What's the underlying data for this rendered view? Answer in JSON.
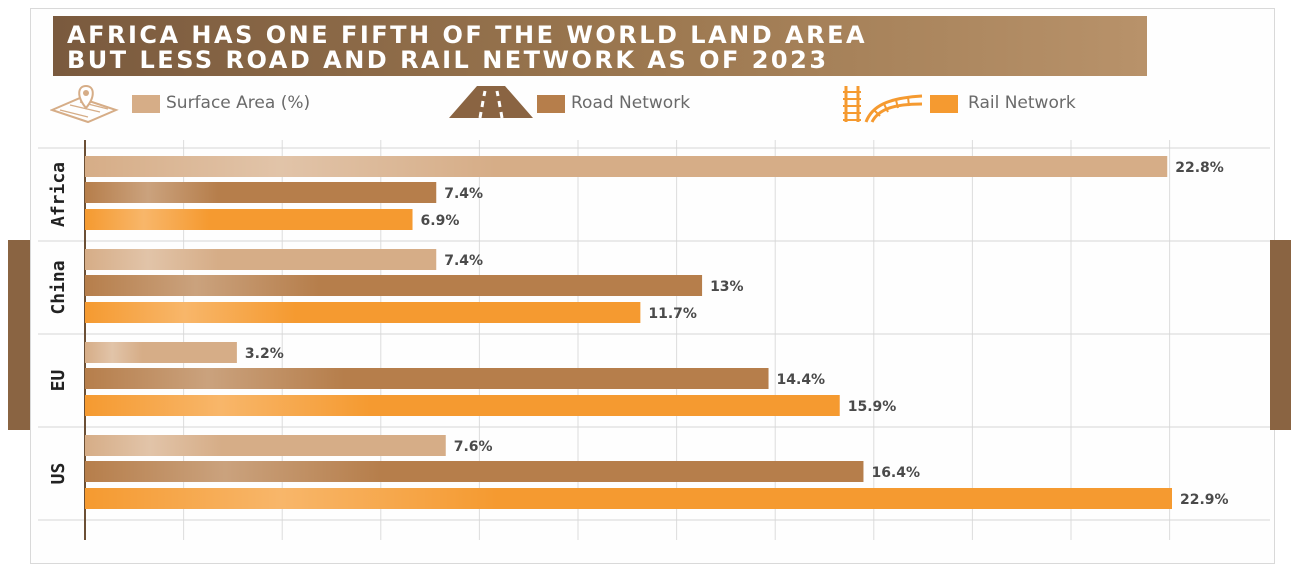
{
  "chart_data": {
    "type": "bar",
    "orientation": "horizontal",
    "title": "AFRICA HAS ONE FIFTH OF THE WORLD LAND AREA BUT LESS ROAD AND RAIL NETWORK AS OF 2023",
    "title_lines": [
      "AFRICA HAS ONE FIFTH OF THE WORLD LAND AREA",
      "BUT LESS ROAD AND RAIL NETWORK AS OF 2023"
    ],
    "categories": [
      "Africa",
      "China",
      "EU",
      "US"
    ],
    "series": [
      {
        "name": "Surface Area (%)",
        "color": "#d6ad87",
        "icon": "map-pin-icon",
        "values": [
          22.8,
          7.4,
          3.2,
          7.6
        ],
        "labels": [
          "22.8%",
          "7.4%",
          "3.2%",
          "7.6%"
        ]
      },
      {
        "name": "Road Network",
        "color": "#b67e4b",
        "icon": "road-icon",
        "values": [
          7.4,
          13,
          14.4,
          16.4
        ],
        "labels": [
          "7.4%",
          "13%",
          "14.4%",
          "16.4%"
        ]
      },
      {
        "name": "Rail Network",
        "color": "#f59a30",
        "icon": "railway-icon",
        "values": [
          6.9,
          11.7,
          15.9,
          22.9
        ],
        "labels": [
          "6.9%",
          "11.7%",
          "15.9%",
          "22.9%"
        ]
      }
    ],
    "xlim": [
      0,
      22.9
    ],
    "grid": true,
    "legend_position": "top"
  }
}
